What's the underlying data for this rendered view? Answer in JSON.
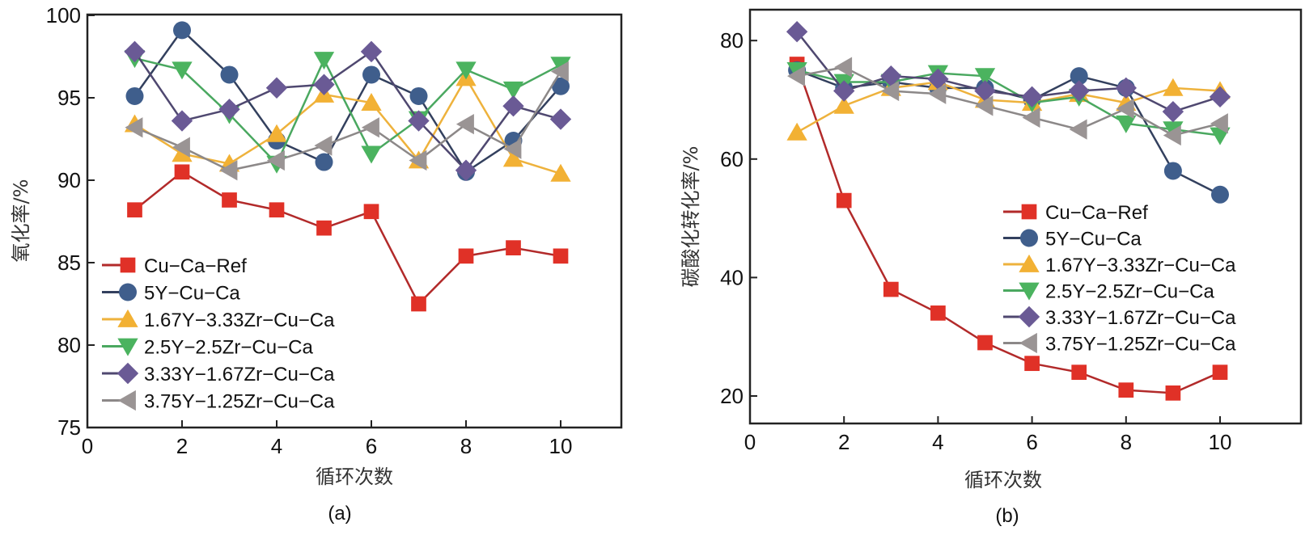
{
  "chart_data": [
    {
      "type": "line",
      "panel_label": "(a)",
      "title": "",
      "xlabel": "循环次数",
      "ylabel": "氧化率/%",
      "xlim": [
        0,
        11
      ],
      "ylim": [
        75,
        100
      ],
      "xticks": [
        0,
        2,
        4,
        6,
        8,
        10
      ],
      "yticks": [
        75,
        80,
        85,
        90,
        95,
        100
      ],
      "grid": false,
      "legend_position": "lower-left",
      "x": [
        1,
        2,
        3,
        4,
        5,
        6,
        7,
        8,
        9,
        10
      ],
      "series": [
        {
          "name": "Cu−Ca−Ref",
          "marker": "square",
          "color": "#e03127",
          "line_color": "#b22a2a",
          "values": [
            88.2,
            90.5,
            88.8,
            88.2,
            87.1,
            88.1,
            82.5,
            85.4,
            85.9,
            85.4
          ]
        },
        {
          "name": "5Y−Cu−Ca",
          "marker": "circle",
          "color": "#3f5e8c",
          "line_color": "#33405e",
          "values": [
            95.1,
            99.1,
            96.4,
            92.4,
            91.1,
            96.4,
            95.1,
            90.5,
            92.4,
            95.7
          ]
        },
        {
          "name": "1.67Y−3.33Zr−Cu−Ca",
          "marker": "triangle-up",
          "color": "#f2b134",
          "line_color": "#eeb23c",
          "values": [
            93.4,
            91.6,
            91.0,
            92.8,
            95.2,
            94.7,
            91.2,
            96.2,
            91.3,
            90.4
          ]
        },
        {
          "name": "2.5Y−2.5Zr−Cu−Ca",
          "marker": "triangle-down",
          "color": "#4bb35f",
          "line_color": "#4aa860",
          "values": [
            97.4,
            96.7,
            94.0,
            91.0,
            97.3,
            91.6,
            93.7,
            96.7,
            95.5,
            97.0
          ]
        },
        {
          "name": "3.33Y−1.67Zr−Cu−Ca",
          "marker": "diamond",
          "color": "#6a5a95",
          "line_color": "#4f4870",
          "values": [
            97.8,
            93.6,
            94.3,
            95.6,
            95.8,
            97.8,
            93.6,
            90.6,
            94.5,
            93.7
          ]
        },
        {
          "name": "3.75Y−1.25Zr−Cu−Ca",
          "marker": "triangle-left",
          "color": "#9a9494",
          "line_color": "#8c8888",
          "values": [
            93.2,
            92.0,
            90.6,
            91.2,
            92.1,
            93.2,
            91.2,
            93.4,
            91.9,
            96.6
          ]
        }
      ]
    },
    {
      "type": "line",
      "panel_label": "(b)",
      "title": "",
      "xlabel": "循环次数",
      "ylabel": "碳酸化转化率/%",
      "xlim": [
        0,
        11
      ],
      "ylim": [
        15,
        85
      ],
      "xticks": [
        0,
        2,
        4,
        6,
        8,
        10
      ],
      "yticks": [
        20,
        40,
        60,
        80
      ],
      "grid": false,
      "legend_position": "center-right",
      "x": [
        1,
        2,
        3,
        4,
        5,
        6,
        7,
        8,
        9,
        10
      ],
      "series": [
        {
          "name": "Cu−Ca−Ref",
          "marker": "square",
          "color": "#e03127",
          "line_color": "#b22a2a",
          "values": [
            76,
            53,
            38,
            34,
            29,
            25.5,
            24,
            21,
            20.5,
            24
          ]
        },
        {
          "name": "5Y−Cu−Ca",
          "marker": "circle",
          "color": "#3f5e8c",
          "line_color": "#33405e",
          "values": [
            75,
            72,
            73,
            72,
            72,
            70,
            74,
            72,
            58,
            54
          ]
        },
        {
          "name": "1.67Y−3.33Zr−Cu−Ca",
          "marker": "triangle-up",
          "color": "#f2b134",
          "line_color": "#eeb23c",
          "values": [
            64.5,
            69,
            72,
            73,
            70,
            69.5,
            71,
            69.5,
            72,
            71.5
          ]
        },
        {
          "name": "2.5Y−2.5Zr−Cu−Ca",
          "marker": "triangle-down",
          "color": "#4bb35f",
          "line_color": "#4aa860",
          "values": [
            75,
            73,
            73,
            74.5,
            74,
            69.5,
            70.5,
            66,
            65,
            64
          ]
        },
        {
          "name": "3.33Y−1.67Zr−Cu−Ca",
          "marker": "diamond",
          "color": "#6a5a95",
          "line_color": "#4f4870",
          "values": [
            81.5,
            71.5,
            74,
            73.5,
            71.5,
            70.5,
            71.5,
            72,
            68,
            70.5
          ]
        },
        {
          "name": "3.75Y−1.25Zr−Cu−Ca",
          "marker": "triangle-left",
          "color": "#9a9494",
          "line_color": "#8c8888",
          "values": [
            74,
            75.5,
            71.5,
            71,
            69,
            67,
            65,
            68.5,
            64,
            66
          ]
        }
      ]
    }
  ]
}
